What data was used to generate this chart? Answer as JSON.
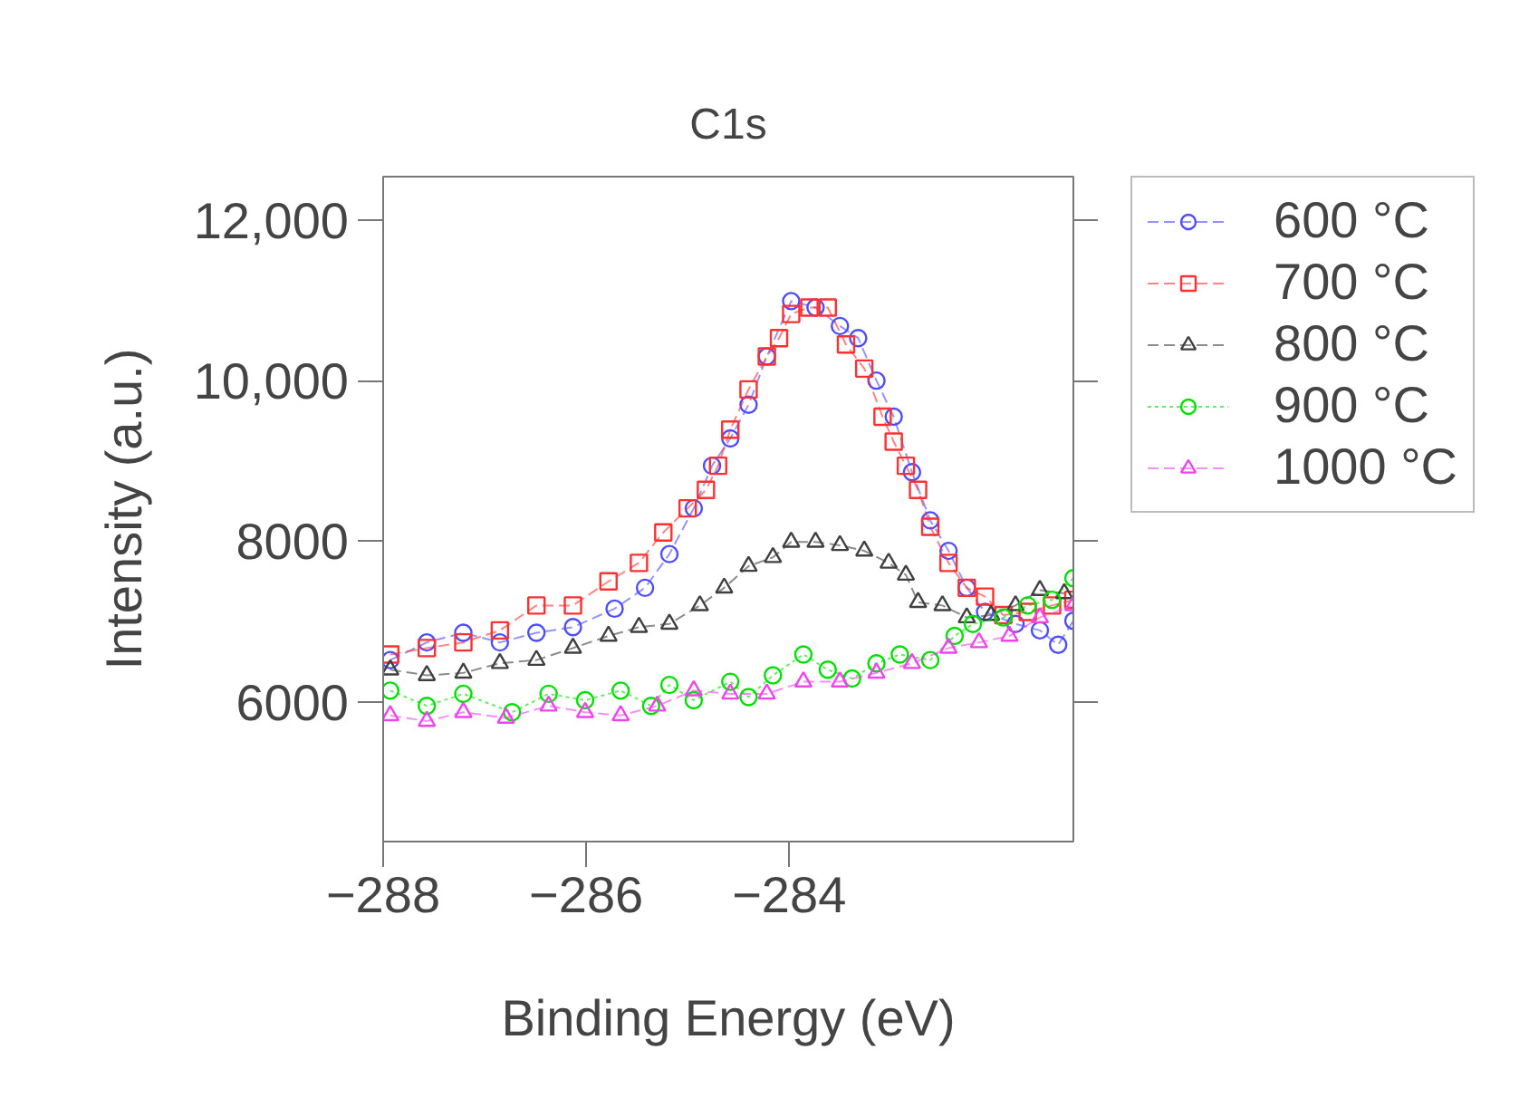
{
  "chart_data": {
    "type": "line",
    "title": "C1s",
    "xlabel": "Binding Energy (eV)",
    "ylabel": "Intensity (a.u.)",
    "xlim": [
      -288,
      -281.2
    ],
    "xticks": [
      -288,
      -286,
      -284
    ],
    "ylim": [
      4260,
      12540
    ],
    "yticks": [
      6000,
      8000,
      {
        "value": 10000,
        "label": "10,000"
      },
      {
        "value": 12000,
        "label": "12,000"
      }
    ],
    "grid": false,
    "legend": "right",
    "series": [
      {
        "name": "600 °C",
        "color": "#4d4dff",
        "marker": "circle",
        "line_style": "dashed",
        "x": [
          -287.93,
          -287.57,
          -287.21,
          -286.85,
          -286.49,
          -286.13,
          -285.72,
          -285.42,
          -285.18,
          -284.94,
          -284.76,
          -284.58,
          -284.4,
          -284.22,
          -283.98,
          -283.74,
          -283.5,
          -283.32,
          -283.14,
          -282.97,
          -282.79,
          -282.61,
          -282.43,
          -282.25,
          -282.07,
          -281.77,
          -281.53,
          -281.35,
          -281.2
        ],
        "values": [
          6520,
          6740,
          6860,
          6740,
          6860,
          6930,
          7160,
          7420,
          7840,
          8410,
          8940,
          9280,
          9700,
          10300,
          10990,
          10910,
          10680,
          10530,
          10000,
          9550,
          8860,
          8260,
          7880,
          7420,
          7120,
          6970,
          6890,
          6710,
          7010
        ]
      },
      {
        "name": "700 °C",
        "color": "#ff3030",
        "marker": "square",
        "line_style": "dashed",
        "x": [
          -287.93,
          -287.57,
          -287.21,
          -286.85,
          -286.49,
          -286.13,
          -285.78,
          -285.48,
          -285.24,
          -285.0,
          -284.82,
          -284.7,
          -284.58,
          -284.4,
          -284.22,
          -284.1,
          -283.98,
          -283.8,
          -283.62,
          -283.44,
          -283.26,
          -283.08,
          -282.97,
          -282.85,
          -282.73,
          -282.61,
          -282.43,
          -282.25,
          -282.07,
          -281.89,
          -281.65,
          -281.41,
          -281.2
        ],
        "values": [
          6590,
          6670,
          6740,
          6890,
          7200,
          7200,
          7500,
          7730,
          8110,
          8410,
          8640,
          8940,
          9390,
          9890,
          10300,
          10530,
          10830,
          10910,
          10910,
          10450,
          10150,
          9550,
          9240,
          8940,
          8640,
          8180,
          7730,
          7420,
          7310,
          7080,
          7120,
          7200,
          7270
        ]
      },
      {
        "name": "800 °C",
        "color": "#404040",
        "marker": "triangle",
        "line_style": "dashed",
        "x": [
          -287.93,
          -287.57,
          -287.21,
          -286.85,
          -286.49,
          -286.13,
          -285.78,
          -285.48,
          -285.18,
          -284.88,
          -284.64,
          -284.4,
          -284.16,
          -283.98,
          -283.74,
          -283.5,
          -283.26,
          -283.02,
          -282.85,
          -282.73,
          -282.49,
          -282.25,
          -282.01,
          -281.77,
          -281.53,
          -281.29
        ],
        "values": [
          6400,
          6330,
          6360,
          6480,
          6520,
          6670,
          6820,
          6930,
          6970,
          7200,
          7420,
          7690,
          7800,
          7990,
          7990,
          7950,
          7880,
          7730,
          7580,
          7240,
          7200,
          7050,
          7080,
          7200,
          7390,
          7350
        ]
      },
      {
        "name": "900 °C",
        "color": "#00e000",
        "marker": "circle",
        "line_style": "dotted",
        "x": [
          -287.93,
          -287.57,
          -287.21,
          -286.73,
          -286.37,
          -286.01,
          -285.66,
          -285.36,
          -285.18,
          -284.94,
          -284.58,
          -284.4,
          -284.16,
          -283.86,
          -283.62,
          -283.38,
          -283.14,
          -282.91,
          -282.61,
          -282.37,
          -282.19,
          -281.89,
          -281.65,
          -281.41,
          -281.2
        ],
        "values": [
          6140,
          5950,
          6100,
          5870,
          6100,
          6020,
          6140,
          5950,
          6210,
          6020,
          6250,
          6060,
          6330,
          6590,
          6400,
          6290,
          6480,
          6590,
          6520,
          6820,
          6970,
          7050,
          7200,
          7270,
          7540
        ]
      },
      {
        "name": "1000 °C",
        "color": "#ee44ee",
        "marker": "triangle",
        "line_style": "dashed",
        "x": [
          -287.93,
          -287.57,
          -287.21,
          -286.79,
          -286.37,
          -286.01,
          -285.66,
          -285.3,
          -284.94,
          -284.58,
          -284.22,
          -283.86,
          -283.5,
          -283.14,
          -282.79,
          -282.43,
          -282.13,
          -281.83,
          -281.53,
          -281.2
        ],
        "values": [
          5830,
          5760,
          5870,
          5800,
          5950,
          5870,
          5830,
          5950,
          6140,
          6100,
          6100,
          6250,
          6250,
          6360,
          6480,
          6670,
          6740,
          6820,
          7050,
          7200
        ]
      }
    ]
  }
}
